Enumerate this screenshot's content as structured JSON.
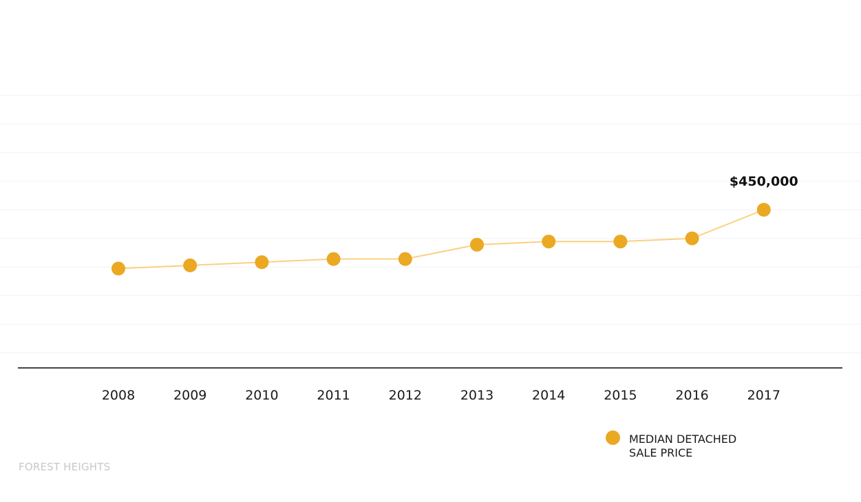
{
  "chart_data": {
    "type": "line",
    "title": "",
    "xlabel": "",
    "ylabel": "",
    "categories": [
      "2008",
      "2009",
      "2010",
      "2011",
      "2012",
      "2013",
      "2014",
      "2015",
      "2016",
      "2017"
    ],
    "series": [
      {
        "name": "MEDIAN DETACHED SALE PRICE",
        "values": [
          265000,
          275000,
          285000,
          295000,
          295000,
          340000,
          350000,
          350000,
          360000,
          450000
        ]
      }
    ],
    "ylim": [
      0,
      900000
    ],
    "grid": true,
    "legend_position": "bottom-right",
    "annotations": [
      {
        "category": "2017",
        "text": "$450,000"
      }
    ],
    "colors": {
      "series": "#EBA823",
      "line": "#FAD082",
      "grid": "#f2f2f2",
      "axis": "#444444"
    }
  },
  "legend": {
    "line1": "MEDIAN DETACHED",
    "line2": "SALE PRICE"
  },
  "footer": {
    "neighbourhood": "FOREST HEIGHTS"
  }
}
